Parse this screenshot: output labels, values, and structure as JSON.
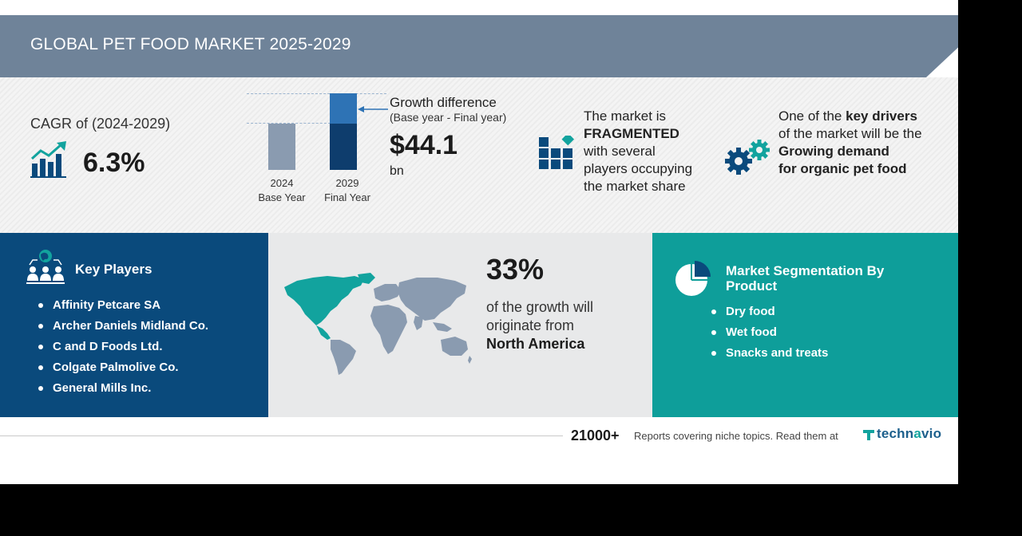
{
  "header": {
    "title": "GLOBAL PET FOOD MARKET 2025-2029"
  },
  "cagr": {
    "label": "CAGR of (2024-2029)",
    "value": "6.3%",
    "icon": "growth-chart-icon"
  },
  "bars": {
    "base": {
      "year": "2024",
      "caption": "Base Year"
    },
    "final": {
      "year": "2029",
      "caption": "Final Year"
    },
    "colors": {
      "base": "#8a9bb0",
      "final_top": "#2e73b5",
      "final_bottom": "#0e3d6d"
    }
  },
  "growth": {
    "title": "Growth difference",
    "subtitle": "(Base year - Final year)",
    "value": "$44.1",
    "unit": "bn"
  },
  "fragmented": {
    "icon": "fragmented-blocks-icon",
    "line1": "The market is",
    "emphasis": "FRAGMENTED",
    "line3": "with several",
    "line4": "players occupying",
    "line5": "the market share"
  },
  "drivers": {
    "icon": "gears-icon",
    "prefix": "One of the ",
    "emphasis": "key drivers",
    "line2": "of the market will be the",
    "line3": "Growing demand",
    "line4": "for organic pet food"
  },
  "key_players": {
    "title": "Key Players",
    "icon": "people-globe-icon",
    "items": [
      "Affinity Petcare SA",
      "Archer Daniels Midland Co.",
      "C and D Foods Ltd.",
      "Colgate Palmolive Co.",
      "General Mills Inc."
    ]
  },
  "region": {
    "share": "33%",
    "line1": "of the growth will",
    "line2": "originate from",
    "name": "North America",
    "icon": "world-map-icon",
    "highlight_color": "#12a39e"
  },
  "segmentation": {
    "title": "Market Segmentation By Product",
    "icon": "pie-chart-icon",
    "items": [
      "Dry food",
      "Wet food",
      "Snacks and treats"
    ]
  },
  "footer": {
    "count": "21000+",
    "text": "Reports covering niche topics. Read them at",
    "logo_a": "techn",
    "logo_b": "a",
    "logo_c": "vio",
    "logo_icon": "technavio-logo-icon"
  },
  "colors": {
    "header": "#6f8399",
    "navy": "#0a4a7c",
    "teal": "#0e9e9a",
    "map_grey": "#8a9bb0"
  }
}
